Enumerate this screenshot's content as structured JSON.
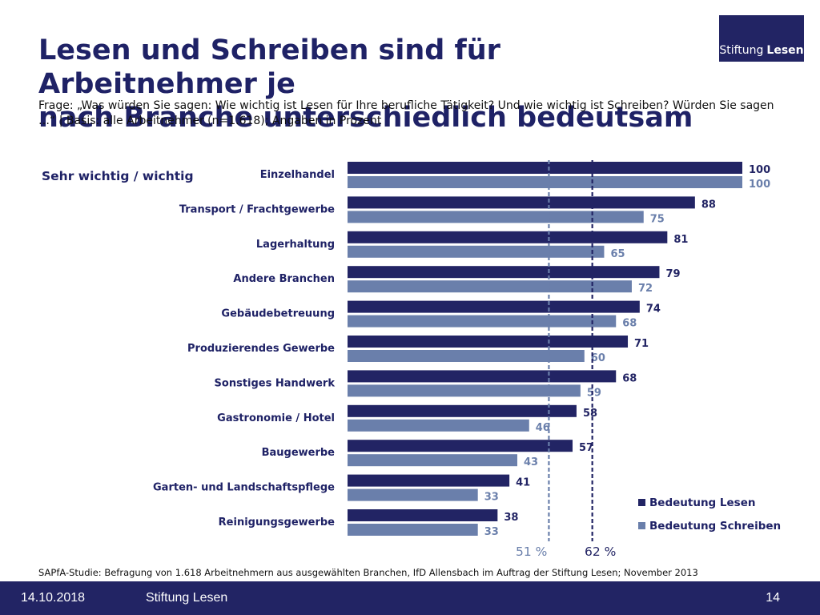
{
  "slide": {
    "title_line1": "Lesen und Schreiben sind für Arbeitnehmer je",
    "title_line2": "nach Branche unterschiedlich bedeutsam",
    "question": "Frage: „Was würden Sie sagen: Wie wichtig ist Lesen für Ihre berufliche Tätigkeit? Und wie wichtig ist Schreiben? Würden Sie sagen …“ | Basis: alle Arbeitnehmer (n=1.618); Angaben in Prozent",
    "source": "SAPfA-Studie: Befragung von 1.618 Arbeitnehmern aus ausgewählten Branchen, IfD Allensbach im Auftrag der Stiftung Lesen; November 2013"
  },
  "logo": {
    "part1": "Stiftung",
    "part2": "Lesen"
  },
  "footer": {
    "date": "14.10.2018",
    "org": "Stiftung Lesen",
    "page": "14"
  },
  "colors": {
    "lesen": "#222464",
    "schreiben": "#6a7fab",
    "footer": "#222464"
  },
  "chart_data": {
    "type": "bar",
    "orientation": "horizontal",
    "subtitle": "Sehr wichtig / wichtig",
    "categories": [
      "Einzelhandel",
      "Transport / Frachtgewerbe",
      "Lagerhaltung",
      "Andere Branchen",
      "Gebäudebetreuung",
      "Produzierendes Gewerbe",
      "Sonstiges Handwerk",
      "Gastronomie / Hotel",
      "Baugewerbe",
      "Garten- und Landschaftspflege",
      "Reinigungsgewerbe"
    ],
    "series": [
      {
        "name": "Bedeutung Lesen",
        "values": [
          100,
          88,
          81,
          79,
          74,
          71,
          68,
          58,
          57,
          41,
          38
        ]
      },
      {
        "name": "Bedeutung Schreiben",
        "values": [
          100,
          75,
          65,
          72,
          68,
          60,
          59,
          46,
          43,
          33,
          33
        ]
      }
    ],
    "xlim": [
      0,
      100
    ],
    "reference_lines": [
      {
        "series": "Bedeutung Schreiben",
        "value": 51,
        "label": "51 %"
      },
      {
        "series": "Bedeutung Lesen",
        "value": 62,
        "label": "62 %"
      }
    ],
    "legend_position": "bottom-right"
  }
}
